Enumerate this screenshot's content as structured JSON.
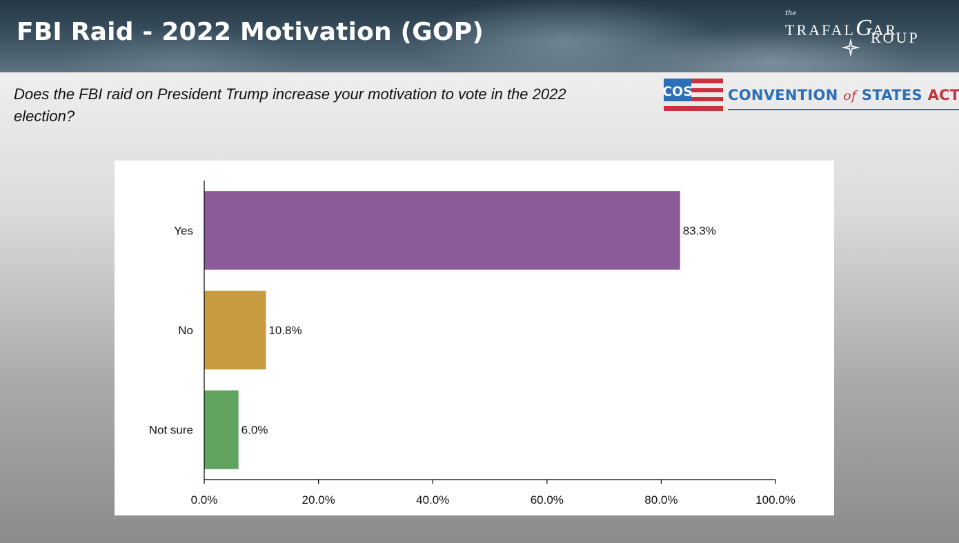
{
  "header": {
    "title": "FBI Raid - 2022 Motivation (GOP)",
    "logo": {
      "small": "the",
      "line1": "TRAFAL",
      "script_letter": "G",
      "line1_end": "AR",
      "line2_letter": "G",
      "line2": "ROUP",
      "icon": "compass-star-icon"
    }
  },
  "question": "Does the FBI raid on President Trump increase your motivation to vote in the 2022 election?",
  "sponsor": {
    "badge": "COS",
    "name_part1": "CONVENTION",
    "name_of": "of",
    "name_part2": "STATES",
    "name_part3": "ACTION",
    "icon": "flag-stripes-icon"
  },
  "colors": {
    "yes": "#8b5b9a",
    "no": "#c99b40",
    "not_sure": "#5fa35f",
    "sponsor_blue": "#2c6fb6",
    "sponsor_red": "#c8323e"
  },
  "chart_data": {
    "type": "bar",
    "orientation": "horizontal",
    "categories": [
      "Yes",
      "No",
      "Not sure"
    ],
    "values": [
      83.3,
      10.8,
      6.0
    ],
    "value_labels": [
      "83.3%",
      "10.8%",
      "6.0%"
    ],
    "bar_colors": [
      "#8b5b9a",
      "#c99b40",
      "#5fa35f"
    ],
    "xlim": [
      0,
      100
    ],
    "xticks": [
      0,
      20,
      40,
      60,
      80,
      100
    ],
    "xtick_labels": [
      "0.0%",
      "20.0%",
      "40.0%",
      "60.0%",
      "80.0%",
      "100.0%"
    ],
    "title": "",
    "xlabel": "",
    "ylabel": "",
    "grid": false,
    "legend": "none"
  }
}
